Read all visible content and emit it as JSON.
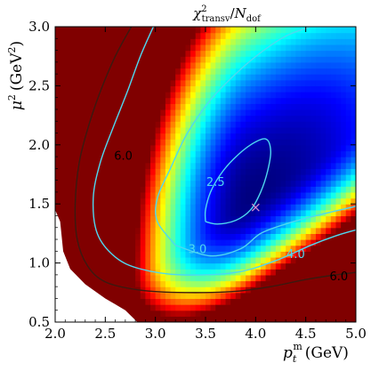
{
  "chart_data": {
    "type": "heatmap",
    "title": {
      "base": "χ",
      "sup": "2",
      "sub": "transv",
      "divider": "/",
      "base2": "N",
      "sub2": "dof"
    },
    "xlabel": {
      "base": "p",
      "sub": "t",
      "sup": "m",
      "unit": "(GeV)"
    },
    "ylabel": {
      "base": "μ",
      "sup": "2",
      "unit_open": "(GeV",
      "unit_sup": "2",
      "unit_close": ")"
    },
    "xlim": [
      2.0,
      5.0
    ],
    "ylim": [
      0.5,
      3.0
    ],
    "xticks": [
      "2.0",
      "2.5",
      "3.0",
      "3.5",
      "4.0",
      "4.5",
      "5.0"
    ],
    "yticks": [
      "0.5",
      "1.0",
      "1.5",
      "2.0",
      "2.5",
      "3.0"
    ],
    "colors": {
      "low": "#00007f",
      "high": "#7f0000",
      "mask": "#ffffff",
      "contour_light": "#4fd8f0",
      "contour_dark": "#3a1a10",
      "marker": "#d890d0"
    },
    "minimum_marker": {
      "x": 4.0,
      "y": 1.47
    },
    "contours": [
      {
        "level_label": "2.5",
        "style": "light",
        "points": [
          [
            3.5,
            1.35
          ],
          [
            3.5,
            1.45
          ],
          [
            3.55,
            1.6
          ],
          [
            3.65,
            1.75
          ],
          [
            3.78,
            1.88
          ],
          [
            3.95,
            2.0
          ],
          [
            4.1,
            2.05
          ],
          [
            4.15,
            1.95
          ],
          [
            4.12,
            1.78
          ],
          [
            4.05,
            1.6
          ],
          [
            3.95,
            1.45
          ],
          [
            3.8,
            1.36
          ],
          [
            3.62,
            1.33
          ],
          [
            3.5,
            1.35
          ]
        ],
        "label_at": [
          3.6,
          1.68
        ]
      },
      {
        "level_label": "3.0",
        "style": "light",
        "points": [
          [
            3.2,
            1.15
          ],
          [
            3.02,
            1.35
          ],
          [
            3.02,
            1.55
          ],
          [
            3.15,
            1.8
          ],
          [
            3.32,
            2.1
          ],
          [
            3.55,
            2.38
          ],
          [
            3.8,
            2.6
          ],
          [
            4.05,
            2.78
          ],
          [
            4.3,
            2.92
          ],
          [
            4.55,
            3.0
          ]
        ],
        "points2": [
          [
            3.2,
            1.15
          ],
          [
            3.55,
            1.06
          ],
          [
            3.85,
            1.12
          ],
          [
            4.05,
            1.25
          ],
          [
            4.3,
            1.33
          ],
          [
            4.6,
            1.4
          ],
          [
            5.0,
            1.48
          ]
        ],
        "label_at": [
          3.42,
          1.11
        ]
      },
      {
        "level_label": "4.0",
        "style": "light",
        "points": [
          [
            2.98,
            3.0
          ],
          [
            2.85,
            2.75
          ],
          [
            2.72,
            2.45
          ],
          [
            2.58,
            2.15
          ],
          [
            2.45,
            1.85
          ],
          [
            2.38,
            1.55
          ],
          [
            2.42,
            1.25
          ],
          [
            2.6,
            1.05
          ],
          [
            2.85,
            0.95
          ],
          [
            3.25,
            0.9
          ],
          [
            3.8,
            0.92
          ],
          [
            4.2,
            1.02
          ],
          [
            4.55,
            1.15
          ],
          [
            4.8,
            1.23
          ],
          [
            5.0,
            1.28
          ]
        ],
        "label_at": [
          4.4,
          1.07
        ]
      },
      {
        "level_label": "6.0",
        "style": "dark",
        "points": [
          [
            2.76,
            3.0
          ],
          [
            2.6,
            2.75
          ],
          [
            2.45,
            2.45
          ],
          [
            2.33,
            2.15
          ],
          [
            2.24,
            1.85
          ],
          [
            2.2,
            1.5
          ],
          [
            2.22,
            1.2
          ],
          [
            2.32,
            0.98
          ],
          [
            2.5,
            0.84
          ],
          [
            2.85,
            0.77
          ],
          [
            3.3,
            0.75
          ],
          [
            3.8,
            0.76
          ],
          [
            4.15,
            0.8
          ],
          [
            4.5,
            0.86
          ],
          [
            4.8,
            0.9
          ],
          [
            5.0,
            0.92
          ]
        ],
        "label_at": [
          2.68,
          1.9
        ]
      }
    ],
    "extra_labels": [
      {
        "text": "6.0",
        "x": 4.83,
        "y": 0.88,
        "style": "dark"
      }
    ]
  }
}
